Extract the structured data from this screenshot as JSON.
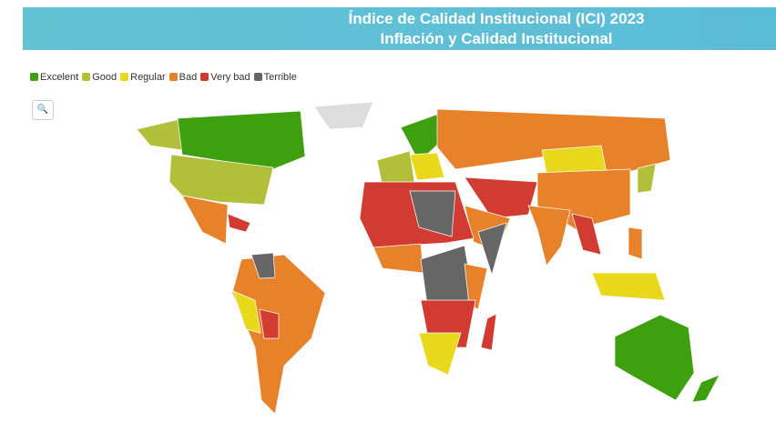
{
  "header": {
    "title": "Índice de Calidad Institucional (ICI) 2023",
    "subtitle": "Inflación y Calidad Institucional"
  },
  "legend": [
    {
      "label": "Excelent",
      "color": "#3fa00f"
    },
    {
      "label": "Good",
      "color": "#b2bf3a"
    },
    {
      "label": "Regular",
      "color": "#e8d91c"
    },
    {
      "label": "Bad",
      "color": "#e8822a"
    },
    {
      "label": "Very bad",
      "color": "#d13b32"
    },
    {
      "label": "Terrible",
      "color": "#666666"
    }
  ]
}
